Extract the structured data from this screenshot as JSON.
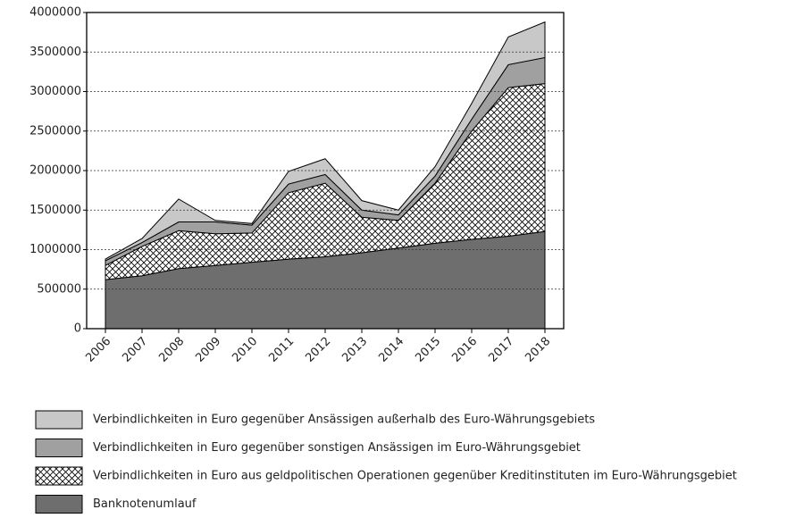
{
  "chart_data": {
    "type": "stacked-area",
    "categories": [
      "2006",
      "2007",
      "2008",
      "2009",
      "2010",
      "2011",
      "2012",
      "2013",
      "2014",
      "2015",
      "2016",
      "2017",
      "2018"
    ],
    "series": [
      {
        "name": "Banknotenumlauf",
        "color": "#6e6e6e",
        "values": [
          620000,
          670000,
          760000,
          800000,
          840000,
          880000,
          910000,
          960000,
          1020000,
          1080000,
          1130000,
          1170000,
          1230000
        ]
      },
      {
        "name": "Verbindlichkeiten in Euro aus geldpolitischen Operationen gegenüber Kreditinstituten im Euro-Währungsgebiet",
        "color": "#ffffff",
        "pattern": "crosshatch",
        "values": [
          180000,
          370000,
          480000,
          400000,
          370000,
          840000,
          930000,
          450000,
          350000,
          760000,
          1370000,
          1880000,
          1870000
        ]
      },
      {
        "name": "Verbindlichkeiten in Euro gegenüber sonstigen Ansässigen im Euro-Währungsgebiet",
        "color": "#a0a0a0",
        "values": [
          60000,
          50000,
          110000,
          150000,
          100000,
          110000,
          110000,
          90000,
          70000,
          90000,
          150000,
          290000,
          330000
        ]
      },
      {
        "name": "Verbindlichkeiten in Euro gegenüber Ansässigen außerhalb des Euro-Währungsgebiets",
        "color": "#c8c8c8",
        "values": [
          20000,
          50000,
          290000,
          20000,
          20000,
          160000,
          200000,
          120000,
          60000,
          120000,
          200000,
          350000,
          450000
        ]
      }
    ],
    "ylim": [
      0,
      4000000
    ],
    "yticks": [
      0,
      500000,
      1000000,
      1500000,
      2000000,
      2500000,
      3000000,
      3500000,
      4000000
    ],
    "grid": true
  }
}
